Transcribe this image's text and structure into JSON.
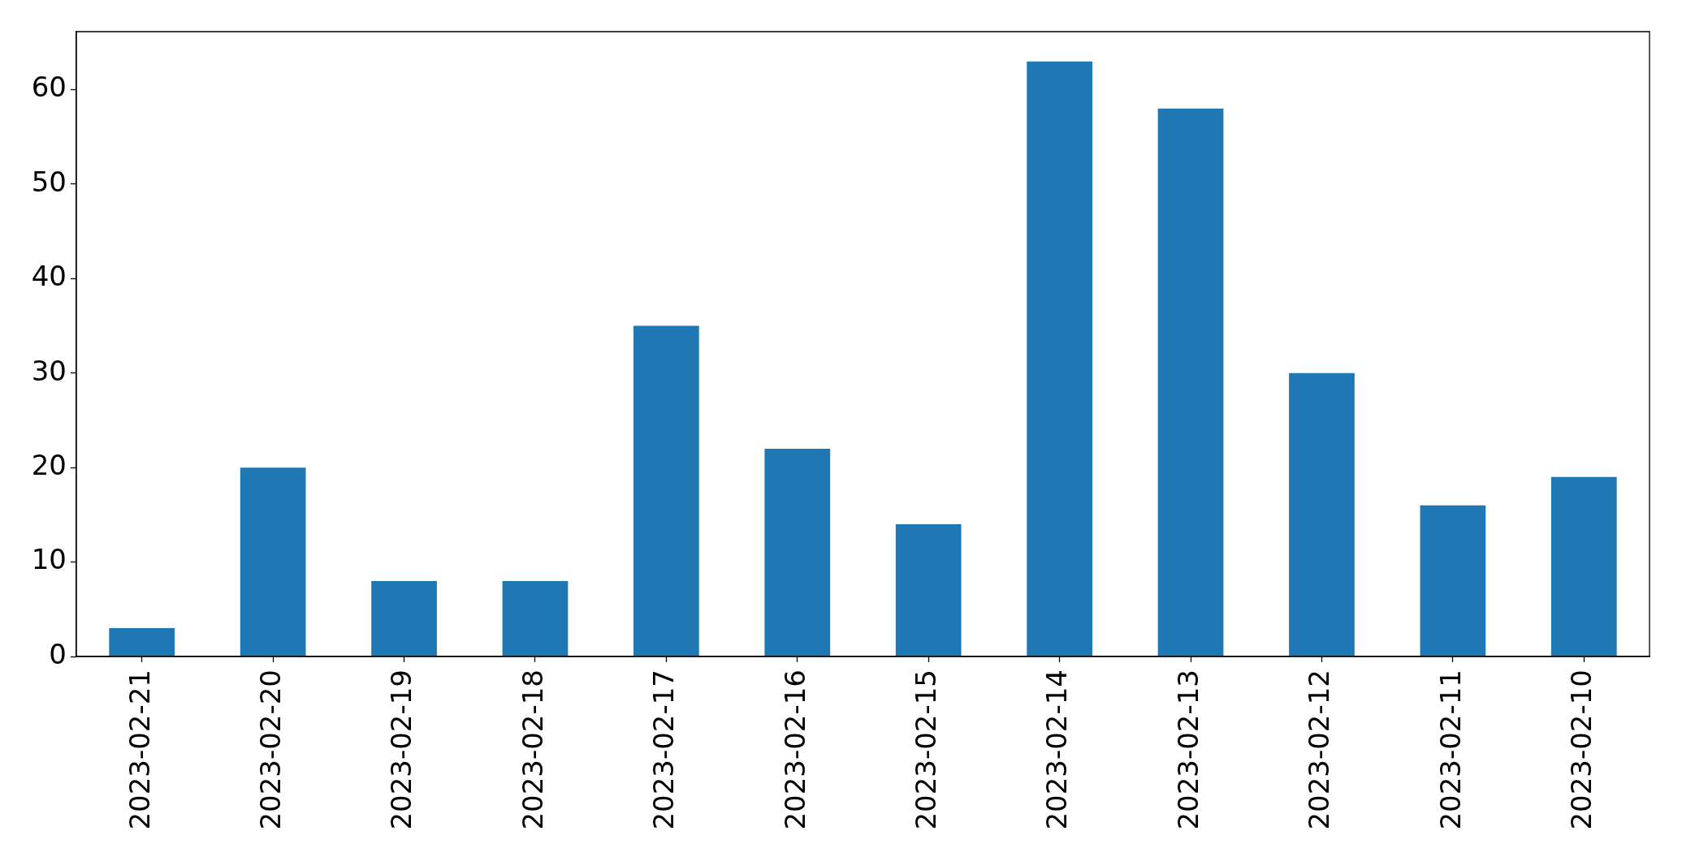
{
  "chart_data": {
    "type": "bar",
    "categories": [
      "2023-02-21",
      "2023-02-20",
      "2023-02-19",
      "2023-02-18",
      "2023-02-17",
      "2023-02-16",
      "2023-02-15",
      "2023-02-14",
      "2023-02-13",
      "2023-02-12",
      "2023-02-11",
      "2023-02-10"
    ],
    "values": [
      3,
      20,
      8,
      8,
      35,
      22,
      14,
      63,
      58,
      30,
      16,
      19
    ],
    "color": "#1f77b4",
    "ylim": [
      0,
      66.15
    ],
    "yticks": [
      0,
      10,
      20,
      30,
      40,
      50,
      60
    ]
  }
}
